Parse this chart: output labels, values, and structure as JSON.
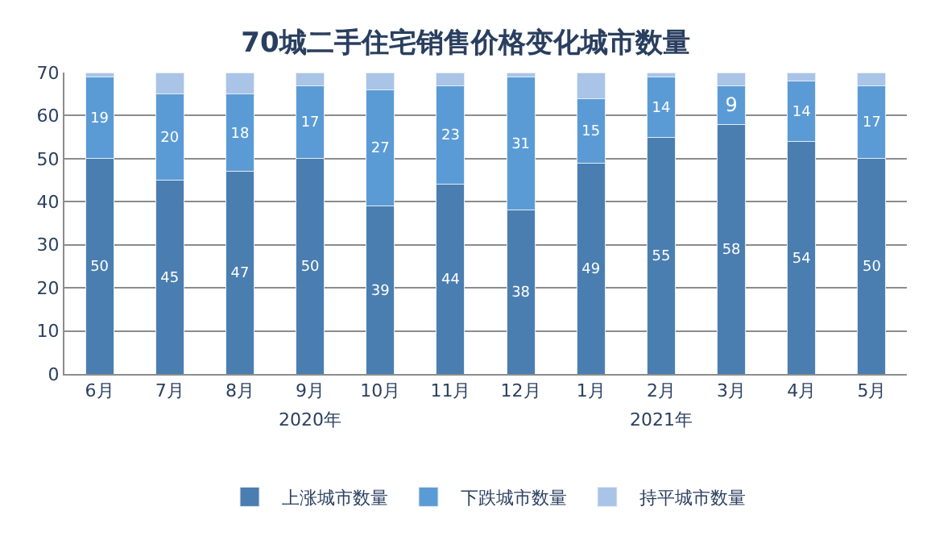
{
  "chart_data": {
    "type": "bar",
    "title": "70城二手住宅销售价格变化城市数量",
    "stacked": true,
    "categories": [
      "6月",
      "7月",
      "8月",
      "9月",
      "10月",
      "11月",
      "12月",
      "1月",
      "2月",
      "3月",
      "4月",
      "5月"
    ],
    "series": [
      {
        "name": "上涨城市数量",
        "color": "#4a7eb0",
        "values": [
          50,
          45,
          47,
          50,
          39,
          44,
          38,
          49,
          55,
          58,
          54,
          50
        ],
        "value_labels": [
          "50",
          "45",
          "47",
          "50",
          "39",
          "44",
          "38",
          "49",
          "55",
          "58",
          "54",
          "50"
        ]
      },
      {
        "name": "下跌城市数量",
        "color": "#5b9bd5",
        "values": [
          19,
          20,
          18,
          17,
          27,
          23,
          31,
          15,
          14,
          9,
          14,
          17
        ],
        "value_labels": [
          "19",
          "20",
          "18",
          "17",
          "27",
          "23",
          "31",
          "15",
          "14",
          "9",
          "14",
          "17"
        ]
      },
      {
        "name": "持平城市数量",
        "color": "#a9c4e6",
        "values": [
          1,
          5,
          5,
          3,
          4,
          3,
          1,
          6,
          1,
          3,
          2,
          3
        ]
      }
    ],
    "ylim": [
      0,
      70
    ],
    "yticks": [
      0,
      10,
      20,
      30,
      40,
      50,
      60,
      70
    ],
    "grid": "y",
    "legend": "bottom",
    "annotations": [
      "2020年",
      "2021年"
    ]
  }
}
